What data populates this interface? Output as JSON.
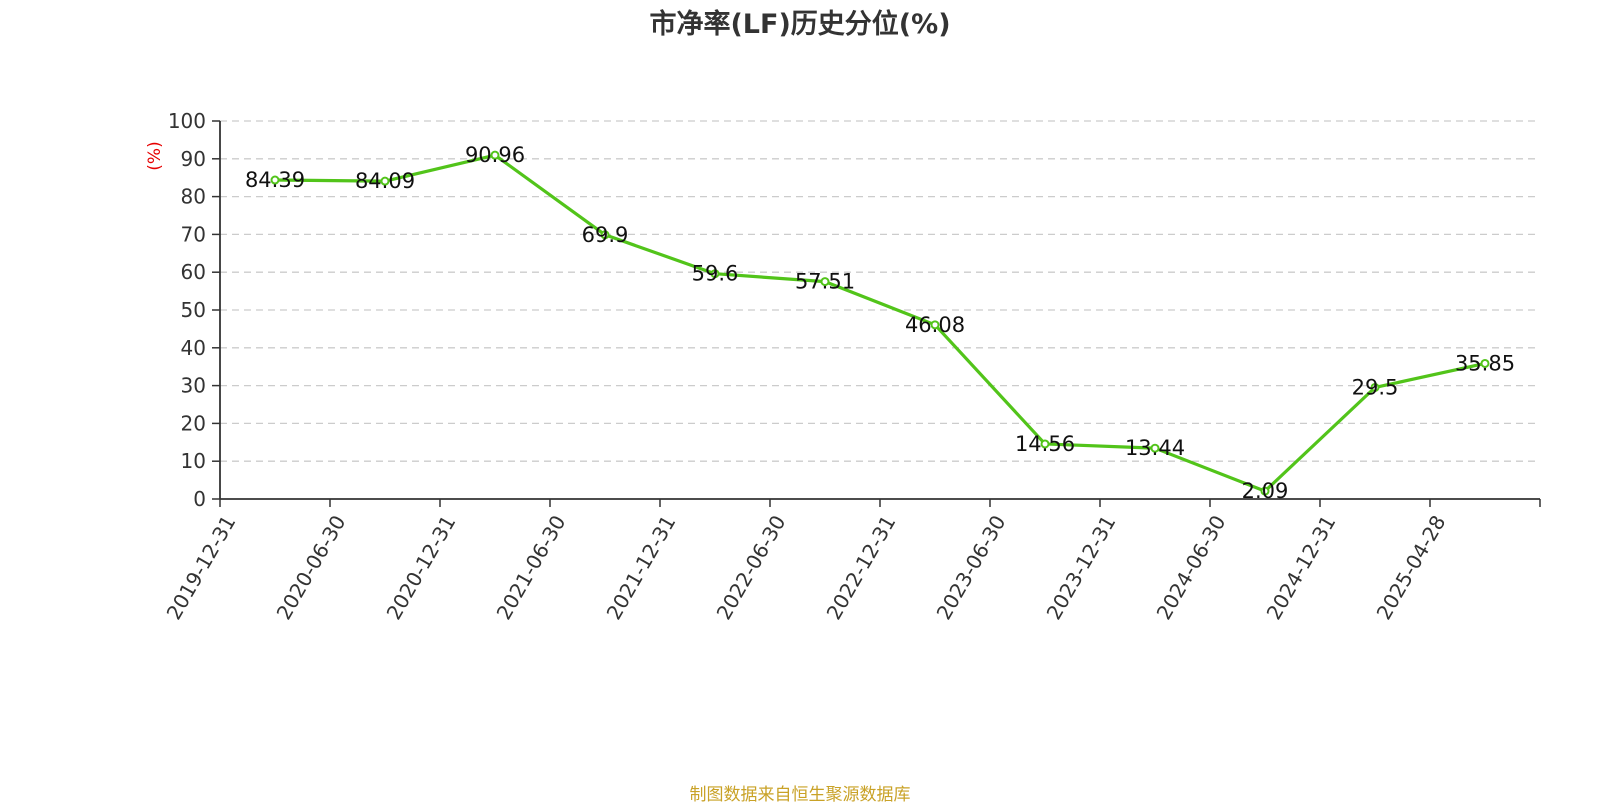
{
  "title": "市净率(LF)历史分位(%)",
  "footer": "制图数据来自恒生聚源数据库",
  "chart_data": {
    "type": "line",
    "title": "市净率(LF)历史分位(%)",
    "xlabel": "",
    "ylabel": "(%)",
    "categories": [
      "2019-12-31",
      "2020-06-30",
      "2020-12-31",
      "2021-06-30",
      "2021-12-31",
      "2022-06-30",
      "2022-12-31",
      "2023-06-30",
      "2023-12-31",
      "2024-06-30",
      "2024-12-31",
      "2025-04-28"
    ],
    "series": [
      {
        "values": [
          84.39,
          84.09,
          90.96,
          69.9,
          59.6,
          57.51,
          46.08,
          14.56,
          13.44,
          2.09,
          29.5,
          35.85
        ]
      }
    ],
    "value_labels": [
      "84.39",
      "84.09",
      "90.96",
      "69.9",
      "59.6",
      "57.51",
      "46.08",
      "14.56",
      "13.44",
      "2.09",
      "29.5",
      "35.85"
    ],
    "ylim": [
      0,
      100
    ],
    "yticks": [
      0,
      10,
      20,
      30,
      40,
      50,
      60,
      70,
      80,
      90,
      100
    ],
    "ytick_labels": [
      "0",
      "10",
      "20",
      "30",
      "40",
      "50",
      "60",
      "70",
      "80",
      "90",
      "100"
    ],
    "grid": true,
    "legend": "none",
    "colors": {
      "line": "#52c41a",
      "grid": "#cccccc",
      "axis": "#333333",
      "unit": "#e60000"
    }
  }
}
